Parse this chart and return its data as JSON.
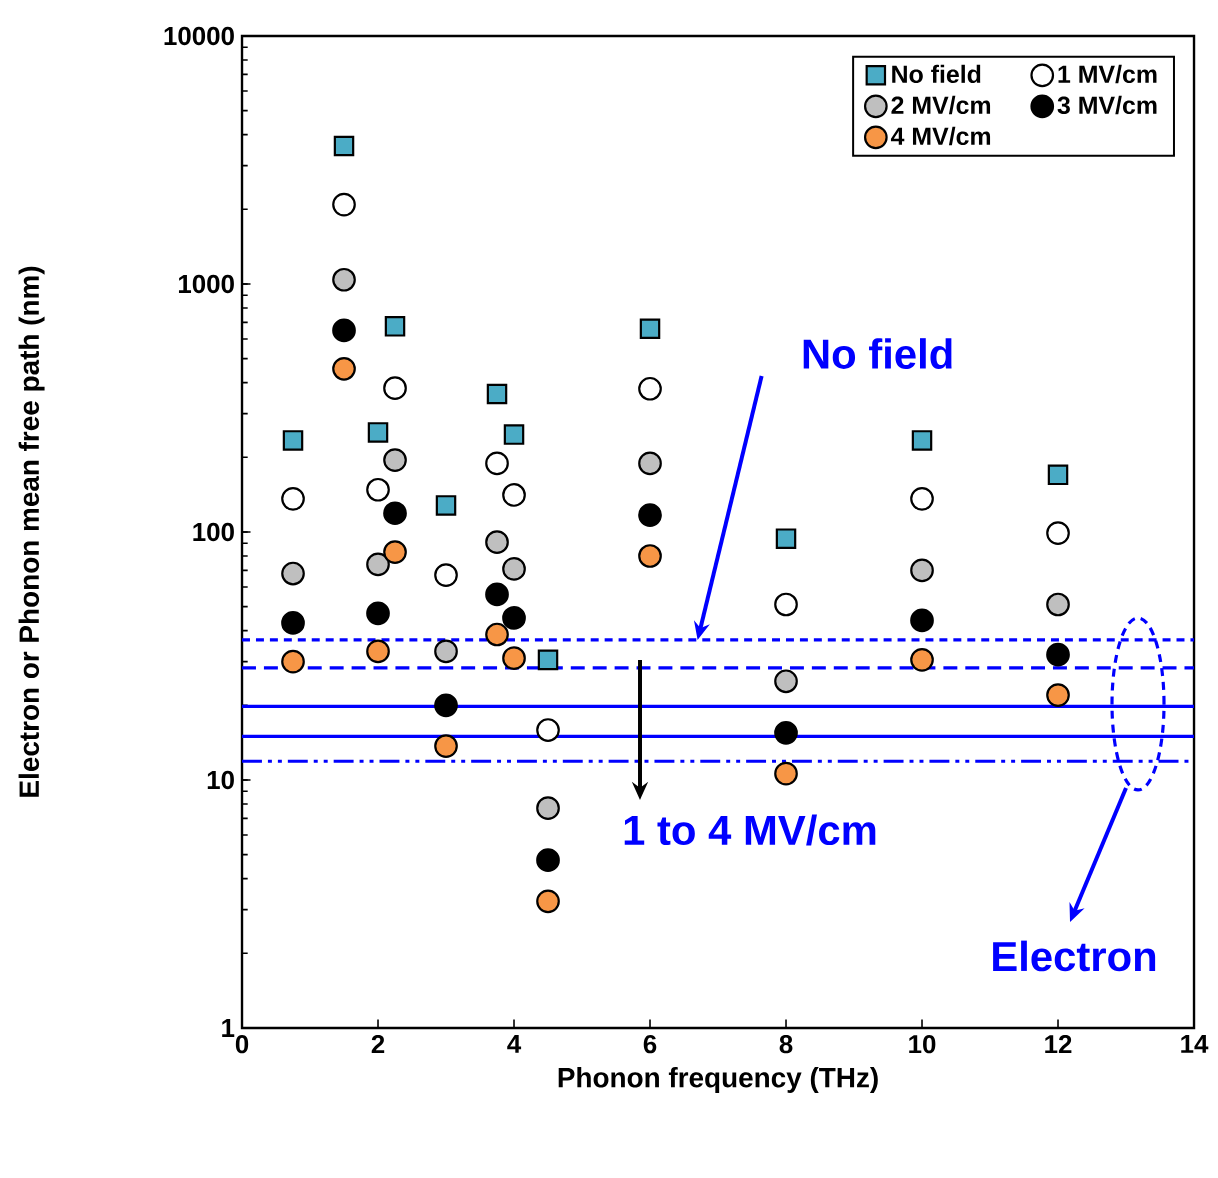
{
  "chart_data": {
    "type": "scatter",
    "xlabel": "Phonon frequency (THz)",
    "ylabel": "Electron or Phonon mean free path (nm)",
    "x": [
      0.75,
      1.5,
      2,
      2.25,
      3,
      3.75,
      4,
      4.5,
      6,
      8,
      10,
      12
    ],
    "series": [
      {
        "name": "No field",
        "color": "#4bacc6",
        "marker": "square",
        "values": [
          234,
          3600,
          252,
          675,
          128,
          360,
          247,
          30.5,
          660,
          94,
          234,
          170
        ]
      },
      {
        "name": "1 MV/cm",
        "color": "#ffffff",
        "marker": "circle",
        "values": [
          136,
          2090,
          148,
          380,
          67,
          189,
          141,
          15.9,
          378,
          51,
          136,
          99
        ]
      },
      {
        "name": "2 MV/cm",
        "color": "#bfbfbf",
        "marker": "circle",
        "values": [
          68,
          1040,
          74,
          195,
          33,
          91,
          71,
          7.7,
          189,
          25,
          70,
          51
        ]
      },
      {
        "name": "3 MV/cm",
        "color": "#000000",
        "marker": "circle",
        "values": [
          43,
          650,
          47,
          119,
          20,
          56,
          45,
          4.75,
          117,
          15.5,
          44,
          32
        ]
      },
      {
        "name": "4 MV/cm",
        "color": "#f79646",
        "marker": "circle",
        "values": [
          30,
          455,
          33,
          83,
          13.7,
          38.6,
          31,
          3.24,
          80,
          10.6,
          30.5,
          22
        ]
      }
    ],
    "log": "y",
    "xlim": [
      0,
      14
    ],
    "ylim": [
      1,
      10000
    ],
    "xticks": [
      0,
      2,
      4,
      6,
      8,
      10,
      12,
      14
    ],
    "yticks": [
      1,
      10,
      100,
      1000,
      10000
    ],
    "legend": "top right",
    "grid": false,
    "ref_lines": [
      {
        "axis": "y",
        "value": 36.7,
        "color": "#0000ff",
        "line_style": "dotted"
      },
      {
        "axis": "y",
        "value": 28.3,
        "color": "#0000ff",
        "line_style": "dashed"
      },
      {
        "axis": "y",
        "value": 19.8,
        "color": "#0000ff",
        "line_style": "solid"
      },
      {
        "axis": "y",
        "value": 15,
        "color": "#0000ff",
        "line_style": "solid"
      },
      {
        "axis": "y",
        "value": 11.9,
        "color": "#0000ff",
        "line_style": "dashdot"
      }
    ],
    "annotations": [
      {
        "text": "No field",
        "x": 6.7,
        "y": 36.7
      },
      "1 to 4 MV/cm",
      "Electron"
    ]
  }
}
